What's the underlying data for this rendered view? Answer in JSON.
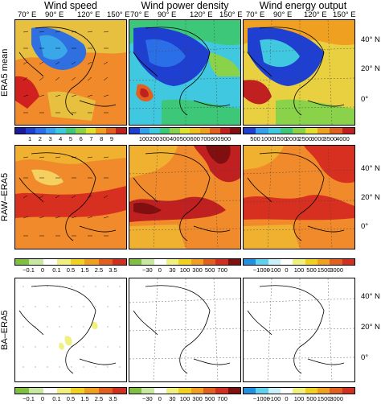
{
  "columns": [
    "Wind speed",
    "Wind power density",
    "Wind energy output"
  ],
  "rows": [
    "ERA5 mean",
    "RAW–ERA5",
    "BA–ERA5"
  ],
  "lon_ticks": [
    "70° E",
    "90° E",
    "120° E",
    "150° E"
  ],
  "lat_ticks": [
    "40° N",
    "20° N",
    "0°"
  ],
  "colorbars": {
    "speed_mean": {
      "labels": [
        "1",
        "2",
        "3",
        "4",
        "5",
        "6",
        "7",
        "8",
        "9"
      ],
      "colors": [
        "#1a1aa0",
        "#1f3fd0",
        "#2b6fe8",
        "#35a0f0",
        "#40c8e0",
        "#3cc878",
        "#8ad24a",
        "#e0e030",
        "#f0a020",
        "#e06020",
        "#c02020"
      ]
    },
    "density_mean": {
      "labels": [
        "100",
        "200",
        "300",
        "400",
        "500",
        "600",
        "700",
        "800",
        "900"
      ],
      "colors": [
        "#1f3fd0",
        "#35a0f0",
        "#40c8e0",
        "#3cc878",
        "#8ad24a",
        "#e0e030",
        "#f0c020",
        "#f0a020",
        "#e06020",
        "#c02020",
        "#801010"
      ]
    },
    "energy_mean": {
      "labels": [
        "500",
        "1000",
        "1500",
        "2000",
        "2500",
        "3000",
        "3500",
        "4000"
      ],
      "colors": [
        "#1f3fd0",
        "#35a0f0",
        "#40c8e0",
        "#3cc878",
        "#8ad24a",
        "#e0e030",
        "#f0a020",
        "#e06020",
        "#c02020"
      ]
    },
    "speed_diff": {
      "labels": [
        "−0.1",
        "0",
        "0.1",
        "0.5",
        "1.5",
        "2.5",
        "3.5"
      ],
      "colors": [
        "#80c040",
        "#c8e8a0",
        "#ffffff",
        "#f0f080",
        "#f0d020",
        "#f0a020",
        "#e06020",
        "#d03020"
      ]
    },
    "density_diff": {
      "labels": [
        "−30",
        "0",
        "30",
        "100",
        "300",
        "500",
        "700"
      ],
      "colors": [
        "#80c040",
        "#c8e8a0",
        "#ffffff",
        "#f0f080",
        "#f0d020",
        "#f0a020",
        "#e06020",
        "#d03020",
        "#801010"
      ]
    },
    "energy_diff": {
      "labels": [
        "−1000",
        "−100",
        "0",
        "100",
        "500",
        "1500",
        "3000"
      ],
      "colors": [
        "#2090e0",
        "#60d0f0",
        "#c8f0f8",
        "#ffffff",
        "#f0f080",
        "#f0d020",
        "#f0a020",
        "#e06020",
        "#d03020"
      ]
    }
  }
}
